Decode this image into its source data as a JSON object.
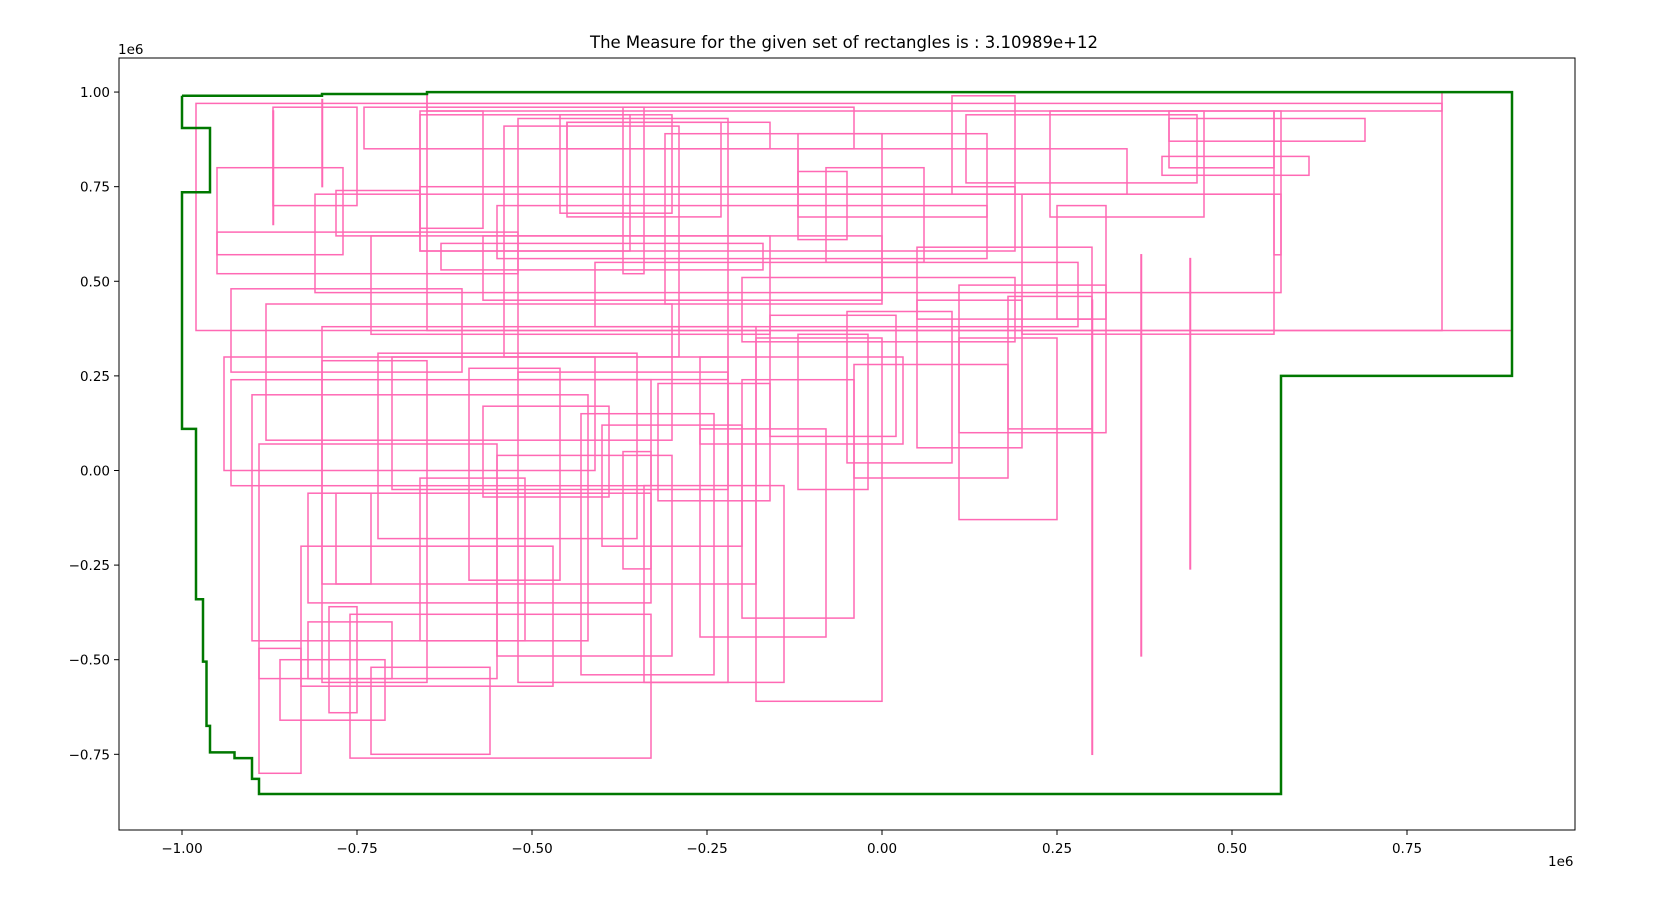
{
  "chart_data": {
    "type": "rectangle-outlines",
    "title": "The Measure for the given set of rectangles is : 3.10989e+12",
    "xlabel": "",
    "ylabel": "",
    "x_offset_label": "1e6",
    "y_offset_label": "1e6",
    "xlim": [
      -1.09,
      0.99
    ],
    "ylim": [
      -0.95,
      1.09
    ],
    "xticks": [
      -1.0,
      -0.75,
      -0.5,
      -0.25,
      0.0,
      0.25,
      0.5,
      0.75
    ],
    "xtick_labels": [
      "−1.00",
      "−0.75",
      "−0.50",
      "−0.25",
      "0.00",
      "0.25",
      "0.50",
      "0.75"
    ],
    "yticks": [
      -0.75,
      -0.5,
      -0.25,
      0.0,
      0.25,
      0.5,
      0.75,
      1.0
    ],
    "ytick_labels": [
      "−0.75",
      "−0.50",
      "−0.25",
      "0.00",
      "0.25",
      "0.50",
      "0.75",
      "1.00"
    ],
    "grid": false,
    "colors": {
      "rectangles": "#ff69b4",
      "union_contour": "#007800",
      "axes": "#000000"
    },
    "union_contour": [
      [
        -1.0,
        0.99
      ],
      [
        -0.8,
        0.99
      ],
      [
        -0.8,
        0.995
      ],
      [
        -0.65,
        0.995
      ],
      [
        -0.65,
        1.0
      ],
      [
        0.9,
        1.0
      ],
      [
        0.9,
        0.25
      ],
      [
        0.57,
        0.25
      ],
      [
        0.57,
        -0.855
      ],
      [
        -0.89,
        -0.855
      ],
      [
        -0.89,
        -0.815
      ],
      [
        -0.9,
        -0.815
      ],
      [
        -0.9,
        -0.76
      ],
      [
        -0.925,
        -0.76
      ],
      [
        -0.925,
        -0.745
      ],
      [
        -0.96,
        -0.745
      ],
      [
        -0.96,
        -0.675
      ],
      [
        -0.965,
        -0.675
      ],
      [
        -0.965,
        -0.505
      ],
      [
        -0.97,
        -0.505
      ],
      [
        -0.97,
        -0.34
      ],
      [
        -0.98,
        -0.34
      ],
      [
        -0.98,
        0.11
      ],
      [
        -1.0,
        0.11
      ],
      [
        -1.0,
        0.735
      ],
      [
        -0.96,
        0.735
      ],
      [
        -0.96,
        0.905
      ],
      [
        -1.0,
        0.905
      ],
      [
        -1.0,
        0.99
      ]
    ],
    "rectangles": [
      [
        -0.65,
        0.37,
        0.9,
        1.0
      ],
      [
        -0.65,
        0.95,
        0.8,
        1.0
      ],
      [
        -0.98,
        0.97,
        0.8,
        0.37
      ],
      [
        -0.95,
        0.57,
        -0.77,
        0.8
      ],
      [
        -0.87,
        0.65,
        -0.87,
        0.95
      ],
      [
        -0.87,
        0.7,
        -0.75,
        0.96
      ],
      [
        -0.8,
        0.75,
        -0.8,
        0.98
      ],
      [
        -0.66,
        0.64,
        -0.57,
        0.95
      ],
      [
        -0.52,
        0.24,
        -0.22,
        0.93
      ],
      [
        -0.74,
        0.85,
        -0.04,
        0.96
      ],
      [
        -0.66,
        0.58,
        -0.36,
        0.94
      ],
      [
        -0.46,
        0.68,
        -0.3,
        0.94
      ],
      [
        -0.37,
        0.52,
        -0.34,
        0.96
      ],
      [
        -0.54,
        0.3,
        -0.29,
        0.91
      ],
      [
        -0.45,
        0.67,
        -0.23,
        0.92
      ],
      [
        -0.45,
        0.85,
        -0.16,
        0.92
      ],
      [
        -0.31,
        0.44,
        0.0,
        0.89
      ],
      [
        -0.12,
        0.67,
        0.15,
        0.89
      ],
      [
        -0.12,
        0.73,
        0.35,
        0.85
      ],
      [
        -0.08,
        0.55,
        0.06,
        0.8
      ],
      [
        0.1,
        0.73,
        0.19,
        0.99
      ],
      [
        0.12,
        0.76,
        0.45,
        0.94
      ],
      [
        0.24,
        0.67,
        0.46,
        0.95
      ],
      [
        0.4,
        0.78,
        0.61,
        0.83
      ],
      [
        0.41,
        0.87,
        0.69,
        0.93
      ],
      [
        0.41,
        0.8,
        0.56,
        0.95
      ],
      [
        0.56,
        0.57,
        0.57,
        0.95
      ],
      [
        -0.81,
        0.47,
        0.57,
        0.73
      ],
      [
        -0.78,
        0.62,
        -0.66,
        0.74
      ],
      [
        -0.66,
        0.58,
        0.19,
        0.75
      ],
      [
        -0.55,
        0.56,
        0.15,
        0.7
      ],
      [
        -0.73,
        0.36,
        -0.16,
        0.62
      ],
      [
        -0.63,
        0.53,
        -0.17,
        0.6
      ],
      [
        -0.57,
        0.45,
        0.0,
        0.62
      ],
      [
        -0.41,
        0.38,
        0.28,
        0.55
      ],
      [
        -0.2,
        0.34,
        0.19,
        0.51
      ],
      [
        -0.12,
        0.61,
        -0.05,
        0.79
      ],
      [
        0.05,
        0.4,
        0.3,
        0.59
      ],
      [
        0.2,
        0.36,
        0.56,
        0.73
      ],
      [
        0.25,
        0.4,
        0.32,
        0.7
      ],
      [
        -0.95,
        0.52,
        -0.52,
        0.63
      ],
      [
        -0.93,
        0.26,
        -0.6,
        0.48
      ],
      [
        -0.94,
        0.0,
        -0.41,
        0.3
      ],
      [
        -0.93,
        -0.04,
        -0.33,
        0.24
      ],
      [
        -0.9,
        -0.45,
        -0.42,
        0.2
      ],
      [
        -0.88,
        0.08,
        -0.3,
        0.44
      ],
      [
        -0.8,
        -0.3,
        -0.18,
        0.38
      ],
      [
        -0.72,
        -0.18,
        -0.35,
        0.31
      ],
      [
        -0.7,
        -0.05,
        -0.22,
        0.3
      ],
      [
        -0.8,
        -0.56,
        -0.65,
        0.29
      ],
      [
        -0.78,
        -0.3,
        -0.73,
        -0.06
      ],
      [
        -0.82,
        -0.55,
        -0.7,
        -0.4
      ],
      [
        -0.86,
        -0.66,
        -0.71,
        -0.5
      ],
      [
        -0.89,
        -0.8,
        -0.83,
        -0.47
      ],
      [
        -0.89,
        -0.55,
        -0.55,
        0.07
      ],
      [
        -0.83,
        -0.57,
        -0.47,
        -0.2
      ],
      [
        -0.82,
        -0.35,
        -0.33,
        -0.06
      ],
      [
        -0.76,
        -0.76,
        -0.33,
        -0.38
      ],
      [
        -0.73,
        -0.75,
        -0.56,
        -0.52
      ],
      [
        -0.79,
        -0.64,
        -0.75,
        -0.36
      ],
      [
        -0.66,
        -0.45,
        -0.51,
        -0.02
      ],
      [
        -0.59,
        -0.29,
        -0.46,
        0.27
      ],
      [
        -0.55,
        -0.49,
        -0.3,
        0.04
      ],
      [
        -0.52,
        -0.56,
        -0.22,
        0.26
      ],
      [
        -0.43,
        -0.54,
        -0.24,
        0.15
      ],
      [
        -0.37,
        -0.26,
        -0.33,
        0.05
      ],
      [
        -0.34,
        -0.56,
        -0.14,
        -0.04
      ],
      [
        -0.32,
        -0.08,
        -0.16,
        0.23
      ],
      [
        -0.26,
        -0.44,
        -0.08,
        0.11
      ],
      [
        -0.2,
        -0.39,
        -0.04,
        0.24
      ],
      [
        -0.18,
        -0.61,
        0.0,
        0.35
      ],
      [
        -0.16,
        0.09,
        0.02,
        0.41
      ],
      [
        -0.12,
        -0.05,
        -0.02,
        0.36
      ],
      [
        -0.05,
        0.02,
        0.1,
        0.42
      ],
      [
        0.05,
        0.06,
        0.2,
        0.45
      ],
      [
        0.11,
        0.1,
        0.32,
        0.49
      ],
      [
        0.18,
        0.11,
        0.3,
        0.46
      ],
      [
        0.3,
        -0.75,
        0.3,
        0.45
      ],
      [
        0.44,
        -0.26,
        0.44,
        0.56
      ],
      [
        0.37,
        -0.49,
        0.37,
        0.57
      ],
      [
        0.25,
        -0.13,
        0.11,
        0.35
      ],
      [
        -0.04,
        -0.02,
        0.18,
        0.28
      ],
      [
        -0.26,
        0.07,
        0.03,
        0.3
      ],
      [
        -0.57,
        -0.07,
        -0.39,
        0.17
      ],
      [
        -0.4,
        -0.2,
        -0.2,
        0.12
      ]
    ]
  }
}
